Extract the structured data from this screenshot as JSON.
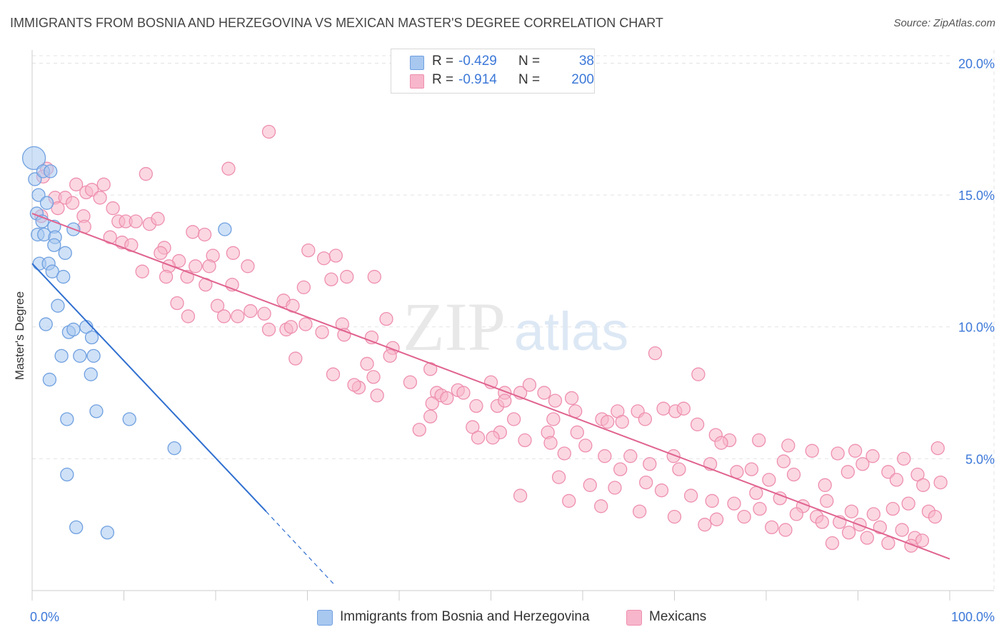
{
  "title": "IMMIGRANTS FROM BOSNIA AND HERZEGOVINA VS MEXICAN MASTER'S DEGREE CORRELATION CHART",
  "source": "Source: ZipAtlas.com",
  "watermark": {
    "zip": "ZIP",
    "atlas": "atlas"
  },
  "legend_top": [
    {
      "r_label": "R =",
      "r_value": "-0.429",
      "n_label": "N =",
      "n_value": "38"
    },
    {
      "r_label": "R =",
      "r_value": "-0.914",
      "n_label": "N =",
      "n_value": "200"
    }
  ],
  "legend_bottom": [
    {
      "label": "Immigrants from Bosnia and Herzegovina"
    },
    {
      "label": "Mexicans"
    }
  ],
  "colors": {
    "blue_fill": "#a8c8f0",
    "blue_stroke": "#6fa0e0",
    "blue_line": "#2f6fd0",
    "pink_fill": "#f7b6cb",
    "pink_stroke": "#ee8fae",
    "pink_line": "#e0638f",
    "tick_text": "#3c78d8",
    "grid": "#e3e3e3"
  },
  "chart_data": {
    "type": "scatter",
    "title": "IMMIGRANTS FROM BOSNIA AND HERZEGOVINA VS MEXICAN MASTER'S DEGREE CORRELATION CHART",
    "xlabel": "",
    "ylabel": "Master's Degree",
    "xlim": [
      0,
      100
    ],
    "ylim": [
      0,
      20.5
    ],
    "x_tick_labels": [
      "0.0%",
      "100.0%"
    ],
    "y_ticks": [
      5,
      10,
      15,
      20
    ],
    "y_tick_labels": [
      "5.0%",
      "10.0%",
      "15.0%",
      "20.0%"
    ],
    "grid": true,
    "legend_position": "top-center",
    "series": [
      {
        "name": "Immigrants from Bosnia and Herzegovina",
        "color": "#a8c8f0",
        "trend": {
          "x0": 0,
          "y0": 12.4,
          "x1": 25.5,
          "y1": 3.0,
          "dash_to_x": 33,
          "dash_to_y": 0.2
        },
        "points": [
          [
            0.2,
            16.4
          ],
          [
            0.3,
            15.6
          ],
          [
            1.2,
            15.9
          ],
          [
            0.7,
            15.0
          ],
          [
            1.6,
            14.7
          ],
          [
            0.5,
            14.3
          ],
          [
            1.1,
            14.0
          ],
          [
            2.4,
            13.8
          ],
          [
            4.5,
            13.7
          ],
          [
            0.6,
            13.5
          ],
          [
            1.3,
            13.5
          ],
          [
            2.5,
            13.4
          ],
          [
            2.4,
            13.1
          ],
          [
            3.6,
            12.8
          ],
          [
            0.8,
            12.4
          ],
          [
            1.8,
            12.4
          ],
          [
            2.2,
            12.1
          ],
          [
            3.4,
            11.9
          ],
          [
            2.8,
            10.8
          ],
          [
            1.5,
            10.1
          ],
          [
            4.0,
            9.8
          ],
          [
            4.5,
            9.9
          ],
          [
            5.9,
            10.0
          ],
          [
            6.5,
            9.6
          ],
          [
            3.2,
            8.9
          ],
          [
            5.2,
            8.9
          ],
          [
            6.7,
            8.9
          ],
          [
            1.9,
            8.0
          ],
          [
            6.4,
            8.2
          ],
          [
            7.0,
            6.8
          ],
          [
            3.8,
            6.5
          ],
          [
            10.6,
            6.5
          ],
          [
            15.5,
            5.4
          ],
          [
            3.8,
            4.4
          ],
          [
            4.8,
            2.4
          ],
          [
            8.2,
            2.2
          ],
          [
            21.0,
            13.7
          ],
          [
            2.0,
            15.9
          ]
        ]
      },
      {
        "name": "Mexicans",
        "color": "#f7b6cb",
        "trend": {
          "x0": 0,
          "y0": 14.3,
          "x1": 100,
          "y1": 1.2
        },
        "points": [
          [
            1.6,
            16.0
          ],
          [
            1.2,
            15.7
          ],
          [
            4.8,
            15.4
          ],
          [
            7.8,
            15.4
          ],
          [
            5.9,
            15.1
          ],
          [
            6.5,
            15.2
          ],
          [
            2.5,
            14.9
          ],
          [
            3.6,
            14.9
          ],
          [
            7.4,
            14.9
          ],
          [
            4.4,
            14.7
          ],
          [
            2.8,
            14.5
          ],
          [
            8.8,
            14.5
          ],
          [
            5.6,
            14.2
          ],
          [
            1.0,
            14.2
          ],
          [
            9.4,
            14.0
          ],
          [
            10.2,
            14.0
          ],
          [
            11.3,
            14.0
          ],
          [
            12.8,
            13.9
          ],
          [
            13.7,
            14.1
          ],
          [
            5.7,
            13.8
          ],
          [
            8.5,
            13.4
          ],
          [
            9.8,
            13.2
          ],
          [
            10.8,
            13.1
          ],
          [
            14.4,
            13.0
          ],
          [
            17.5,
            13.6
          ],
          [
            18.8,
            13.5
          ],
          [
            14.0,
            12.8
          ],
          [
            19.7,
            12.7
          ],
          [
            21.9,
            12.8
          ],
          [
            23.5,
            12.3
          ],
          [
            30.1,
            12.9
          ],
          [
            31.8,
            12.6
          ],
          [
            33.1,
            12.7
          ],
          [
            16.0,
            12.5
          ],
          [
            14.9,
            12.3
          ],
          [
            17.8,
            12.3
          ],
          [
            19.3,
            12.3
          ],
          [
            12.0,
            12.1
          ],
          [
            14.6,
            11.9
          ],
          [
            16.9,
            11.9
          ],
          [
            32.6,
            11.8
          ],
          [
            34.3,
            11.9
          ],
          [
            37.3,
            11.9
          ],
          [
            18.9,
            11.6
          ],
          [
            21.8,
            11.6
          ],
          [
            29.6,
            11.5
          ],
          [
            15.8,
            10.9
          ],
          [
            17.0,
            10.4
          ],
          [
            20.2,
            10.8
          ],
          [
            22.4,
            10.4
          ],
          [
            23.8,
            10.6
          ],
          [
            25.3,
            10.5
          ],
          [
            20.9,
            10.4
          ],
          [
            27.4,
            11.0
          ],
          [
            28.4,
            10.8
          ],
          [
            29.8,
            10.1
          ],
          [
            33.8,
            10.1
          ],
          [
            38.6,
            10.3
          ],
          [
            25.8,
            9.9
          ],
          [
            27.7,
            9.9
          ],
          [
            28.2,
            10.0
          ],
          [
            31.6,
            9.8
          ],
          [
            34.0,
            9.7
          ],
          [
            37.0,
            9.6
          ],
          [
            39.3,
            9.2
          ],
          [
            39.0,
            8.9
          ],
          [
            43.4,
            8.4
          ],
          [
            28.7,
            8.8
          ],
          [
            32.8,
            8.2
          ],
          [
            36.5,
            8.6
          ],
          [
            37.2,
            8.1
          ],
          [
            35.6,
            7.7
          ],
          [
            35.1,
            7.8
          ],
          [
            37.6,
            7.4
          ],
          [
            41.2,
            7.9
          ],
          [
            44.1,
            7.5
          ],
          [
            46.4,
            7.6
          ],
          [
            47.0,
            7.5
          ],
          [
            50.0,
            7.9
          ],
          [
            51.5,
            7.5
          ],
          [
            53.2,
            7.5
          ],
          [
            54.2,
            7.8
          ],
          [
            55.8,
            7.5
          ],
          [
            57.0,
            7.2
          ],
          [
            58.8,
            7.3
          ],
          [
            43.6,
            7.1
          ],
          [
            44.6,
            7.4
          ],
          [
            45.2,
            7.3
          ],
          [
            48.4,
            7.0
          ],
          [
            50.7,
            7.0
          ],
          [
            51.5,
            7.2
          ],
          [
            52.5,
            6.5
          ],
          [
            56.8,
            6.5
          ],
          [
            59.2,
            6.8
          ],
          [
            62.1,
            6.5
          ],
          [
            63.8,
            6.8
          ],
          [
            66.0,
            6.8
          ],
          [
            68.8,
            6.9
          ],
          [
            43.4,
            6.6
          ],
          [
            48.0,
            6.2
          ],
          [
            42.2,
            6.1
          ],
          [
            51.0,
            6.0
          ],
          [
            56.2,
            6.0
          ],
          [
            59.4,
            6.0
          ],
          [
            62.7,
            6.4
          ],
          [
            64.3,
            6.4
          ],
          [
            66.8,
            6.5
          ],
          [
            70.1,
            6.8
          ],
          [
            71.0,
            6.9
          ],
          [
            72.5,
            6.3
          ],
          [
            74.5,
            5.9
          ],
          [
            76.0,
            5.7
          ],
          [
            79.2,
            5.7
          ],
          [
            82.4,
            5.5
          ],
          [
            85.0,
            5.3
          ],
          [
            87.8,
            5.2
          ],
          [
            89.7,
            5.3
          ],
          [
            91.6,
            5.1
          ],
          [
            95.0,
            5.0
          ],
          [
            98.7,
            5.4
          ],
          [
            56.5,
            5.6
          ],
          [
            53.7,
            5.7
          ],
          [
            50.2,
            5.8
          ],
          [
            48.6,
            5.8
          ],
          [
            58.0,
            5.2
          ],
          [
            60.3,
            5.5
          ],
          [
            62.4,
            5.1
          ],
          [
            65.2,
            5.1
          ],
          [
            69.9,
            5.1
          ],
          [
            75.1,
            5.6
          ],
          [
            81.9,
            4.9
          ],
          [
            90.5,
            4.8
          ],
          [
            93.3,
            4.5
          ],
          [
            96.5,
            4.4
          ],
          [
            64.1,
            4.6
          ],
          [
            67.3,
            4.8
          ],
          [
            70.5,
            4.6
          ],
          [
            73.9,
            4.8
          ],
          [
            76.8,
            4.5
          ],
          [
            78.4,
            4.6
          ],
          [
            80.3,
            4.2
          ],
          [
            83.0,
            4.4
          ],
          [
            86.4,
            4.0
          ],
          [
            88.9,
            4.5
          ],
          [
            94.2,
            4.2
          ],
          [
            97.1,
            4.0
          ],
          [
            99.0,
            4.1
          ],
          [
            57.4,
            4.3
          ],
          [
            60.8,
            4.0
          ],
          [
            63.5,
            3.9
          ],
          [
            66.9,
            4.1
          ],
          [
            68.6,
            3.8
          ],
          [
            71.8,
            3.6
          ],
          [
            74.1,
            3.4
          ],
          [
            76.5,
            3.3
          ],
          [
            79.3,
            3.1
          ],
          [
            81.5,
            3.5
          ],
          [
            84.0,
            3.2
          ],
          [
            86.6,
            3.4
          ],
          [
            89.3,
            3.0
          ],
          [
            91.7,
            2.9
          ],
          [
            93.8,
            3.1
          ],
          [
            95.5,
            3.3
          ],
          [
            97.7,
            3.0
          ],
          [
            98.4,
            2.8
          ],
          [
            85.5,
            2.8
          ],
          [
            88.0,
            2.6
          ],
          [
            90.2,
            2.5
          ],
          [
            92.4,
            2.4
          ],
          [
            94.8,
            2.3
          ],
          [
            96.2,
            2.0
          ],
          [
            97.0,
            1.9
          ],
          [
            73.3,
            2.5
          ],
          [
            77.6,
            2.8
          ],
          [
            80.6,
            2.4
          ],
          [
            83.3,
            2.9
          ],
          [
            86.1,
            2.6
          ],
          [
            89.0,
            2.2
          ],
          [
            91.0,
            2.0
          ],
          [
            93.3,
            1.8
          ],
          [
            95.8,
            1.7
          ],
          [
            53.2,
            3.6
          ],
          [
            58.5,
            3.4
          ],
          [
            62.0,
            3.2
          ],
          [
            66.2,
            3.0
          ],
          [
            70.0,
            2.8
          ],
          [
            74.6,
            2.7
          ],
          [
            78.9,
            3.7
          ],
          [
            82.1,
            2.3
          ],
          [
            87.2,
            1.8
          ],
          [
            25.8,
            17.4
          ],
          [
            21.4,
            16.0
          ],
          [
            12.4,
            15.8
          ],
          [
            67.9,
            9.0
          ],
          [
            72.6,
            8.2
          ]
        ]
      }
    ]
  }
}
